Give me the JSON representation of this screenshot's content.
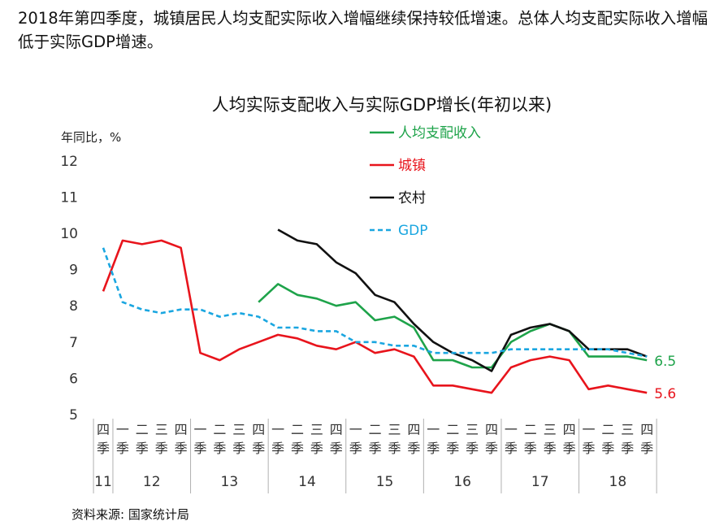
{
  "headline": "2018年第四季度，城镇居民人均支配实际收入增幅继续保持较低增速。总体人均支配实际收入增幅低于实际GDP增速。",
  "source": "资料来源: 国家统计局",
  "chart_data": {
    "type": "line",
    "title": "人均实际支配收入与实际GDP增长(年初以来)",
    "ylabel": "年同比，%",
    "xlabel": "",
    "ylim": [
      5,
      12
    ],
    "yticks": [
      5,
      6,
      7,
      8,
      9,
      10,
      11,
      12
    ],
    "x_quarters": [
      "四季",
      "一季",
      "二季",
      "三季",
      "四季",
      "一季",
      "二季",
      "三季",
      "四季",
      "一季",
      "二季",
      "三季",
      "四季",
      "一季",
      "二季",
      "三季",
      "四季",
      "一季",
      "二季",
      "三季",
      "四季",
      "一季",
      "二季",
      "三季",
      "四季",
      "一季",
      "二季",
      "三季",
      "四季"
    ],
    "x_years": [
      {
        "label": "11",
        "start": 0,
        "end": 0
      },
      {
        "label": "12",
        "start": 1,
        "end": 4
      },
      {
        "label": "13",
        "start": 5,
        "end": 8
      },
      {
        "label": "14",
        "start": 9,
        "end": 12
      },
      {
        "label": "15",
        "start": 13,
        "end": 16
      },
      {
        "label": "16",
        "start": 17,
        "end": 20
      },
      {
        "label": "17",
        "start": 21,
        "end": 24
      },
      {
        "label": "18",
        "start": 25,
        "end": 28
      }
    ],
    "series": [
      {
        "name": "人均支配收入",
        "color": "#1ea34a",
        "dash": false,
        "values": [
          null,
          null,
          null,
          null,
          null,
          null,
          null,
          null,
          8.1,
          8.6,
          8.3,
          8.2,
          8.0,
          8.1,
          7.6,
          7.7,
          7.4,
          6.5,
          6.5,
          6.3,
          6.3,
          7.0,
          7.3,
          7.5,
          7.3,
          6.6,
          6.6,
          6.6,
          6.5
        ]
      },
      {
        "name": "城镇",
        "color": "#e8141c",
        "dash": false,
        "values": [
          8.4,
          9.8,
          9.7,
          9.8,
          9.6,
          6.7,
          6.5,
          6.8,
          7.0,
          7.2,
          7.1,
          6.9,
          6.8,
          7.0,
          6.7,
          6.8,
          6.6,
          5.8,
          5.8,
          5.7,
          5.6,
          6.3,
          6.5,
          6.6,
          6.5,
          5.7,
          5.8,
          5.7,
          5.6
        ]
      },
      {
        "name": "农村",
        "color": "#111111",
        "dash": false,
        "values": [
          null,
          null,
          null,
          null,
          null,
          null,
          null,
          null,
          null,
          10.1,
          9.8,
          9.7,
          9.2,
          8.9,
          8.3,
          8.1,
          7.5,
          7.0,
          6.7,
          6.5,
          6.2,
          7.2,
          7.4,
          7.5,
          7.3,
          6.8,
          6.8,
          6.8,
          6.6
        ]
      },
      {
        "name": "GDP",
        "color": "#1aa6e0",
        "dash": true,
        "values": [
          9.6,
          8.1,
          7.9,
          7.8,
          7.9,
          7.9,
          7.7,
          7.8,
          7.7,
          7.4,
          7.4,
          7.3,
          7.3,
          7.0,
          7.0,
          6.9,
          6.9,
          6.7,
          6.7,
          6.7,
          6.7,
          6.8,
          6.8,
          6.8,
          6.8,
          6.8,
          6.8,
          6.7,
          6.6
        ]
      }
    ],
    "annotations": [
      {
        "text": "6.5",
        "color": "#1ea34a"
      },
      {
        "text": "5.6",
        "color": "#e8141c"
      }
    ]
  }
}
